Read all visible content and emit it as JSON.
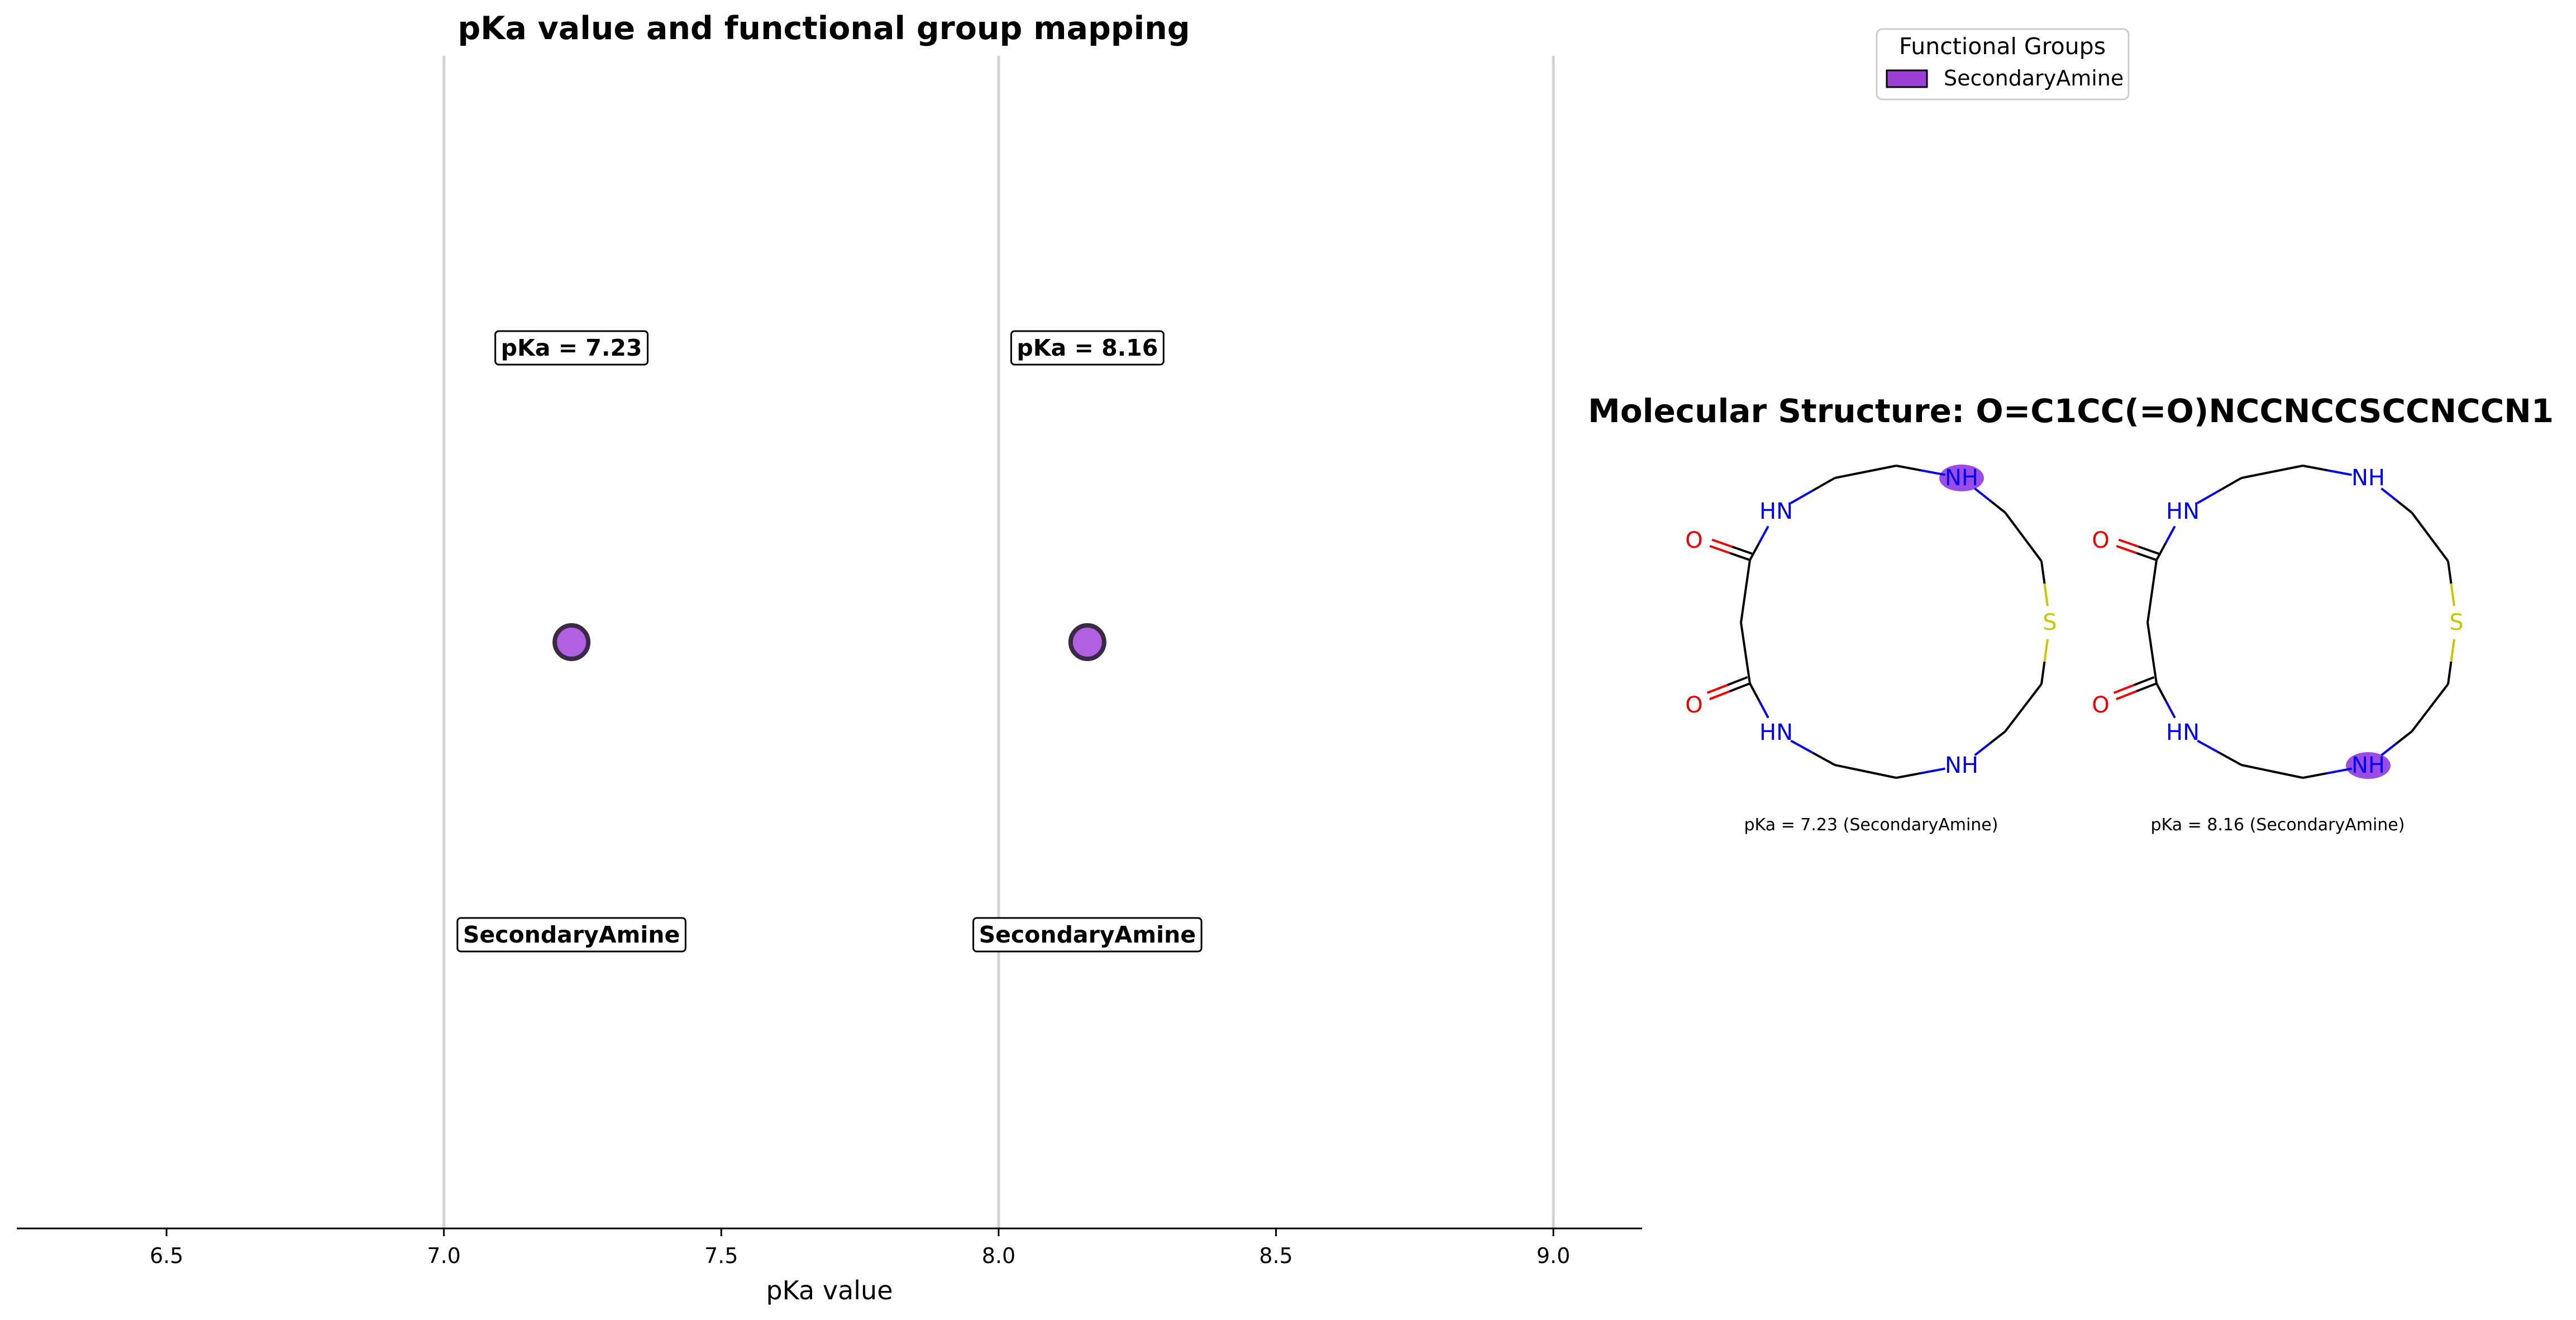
{
  "chart_data": {
    "type": "scatter",
    "title": "pKa value and functional group mapping",
    "xlabel": "pKa value",
    "ylabel": "",
    "xlim": [
      6.23,
      9.16
    ],
    "xticks": [
      6.5,
      7.0,
      7.5,
      8.0,
      8.5,
      9.0
    ],
    "xtick_labels": [
      "6.5",
      "7.0",
      "7.5",
      "8.0",
      "8.5",
      "9.0"
    ],
    "vertical_lines": [
      7.0,
      8.0,
      9.0
    ],
    "grid": false,
    "points": [
      {
        "x": 7.23,
        "label": "pKa = 7.23",
        "group": "SecondaryAmine"
      },
      {
        "x": 8.16,
        "label": "pKa = 8.16",
        "group": "SecondaryAmine"
      }
    ],
    "legend": {
      "title": "Functional Groups",
      "placement": "top-right",
      "entries": [
        {
          "name": "SecondaryAmine",
          "color": "#9b3fd6"
        }
      ]
    },
    "marker_color": "#b060e0",
    "marker_edge_color": "#3a2a44"
  },
  "molecule": {
    "title": "Molecular Structure: O=C1CC(=O)NCCNCCSCCNCCN1",
    "highlight_color": "#8a2be2",
    "atom_colors": {
      "N": "#0000ee",
      "O": "#ee0000",
      "S": "#c8c800"
    },
    "panels": [
      {
        "caption": "pKa = 7.23 (SecondaryAmine)",
        "highlight": "top"
      },
      {
        "caption": "pKa = 8.16 (SecondaryAmine)",
        "highlight": "bottom"
      }
    ]
  }
}
